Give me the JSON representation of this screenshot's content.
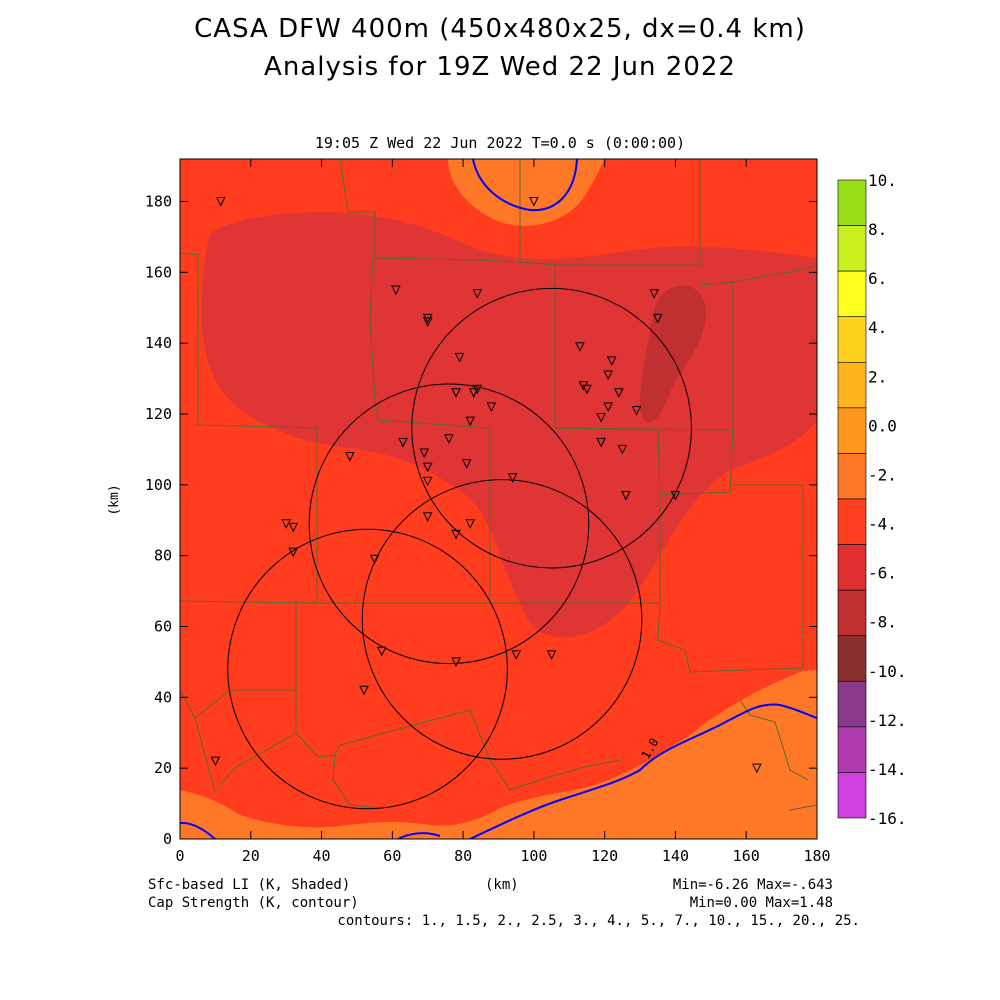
{
  "title_line1": "CASA DFW 400m (450x480x25, dx=0.4 km)",
  "title_line2": "Analysis for 19Z Wed 22 Jun 2022",
  "subtitle": "19:05 Z Wed 22 Jun 2022   T=0.0 s (0:00:00)",
  "x_axis": {
    "label": "(km)",
    "ticks": [
      "0",
      "20",
      "40",
      "60",
      "80",
      "100",
      "120",
      "140",
      "160",
      "180"
    ],
    "range": [
      0,
      180
    ]
  },
  "y_axis": {
    "label": "(km)",
    "ticks": [
      "0",
      "20",
      "40",
      "60",
      "80",
      "100",
      "120",
      "140",
      "160",
      "180"
    ],
    "range": [
      0,
      192
    ]
  },
  "colorbar": {
    "labels": [
      "10.",
      "8.",
      "6.",
      "4.",
      "2.",
      "0.0",
      "-2.",
      "-4.",
      "-6.",
      "-8.",
      "-10.",
      "-12.",
      "-14.",
      "-16."
    ],
    "colors": [
      "#99e01a",
      "#c8f01e",
      "#ffff1e",
      "#ffd21e",
      "#ffb41e",
      "#ff961e",
      "#ff7828",
      "#ff4020",
      "#e03030",
      "#c03030",
      "#8c2f2f",
      "#8a3a8a",
      "#b03ab0",
      "#d040e0"
    ]
  },
  "field_colors": {
    "minus2_to_0": "#ff7828",
    "minus4_to_minus2": "#ff3c1e",
    "minus6_to_minus4": "#e03535",
    "minus8_to_minus6": "#c03030"
  },
  "contour_label": "1.0",
  "contour_color": "#0000ff",
  "footer": {
    "left1": "Sfc-based LI (K, Shaded)",
    "left2": "Cap Strength (K, contour)",
    "center": "(km)",
    "right1": "Min=-6.26 Max=-.643",
    "right2": "Min=0.00 Max=1.48",
    "right3": "contours: 1., 1.5, 2., 2.5, 3., 4., 5., 7., 10., 15., 20., 25."
  },
  "stations": [
    [
      11.5,
      180
    ],
    [
      100,
      180
    ],
    [
      61,
      155
    ],
    [
      84,
      154
    ],
    [
      134,
      154
    ],
    [
      70,
      147
    ],
    [
      70,
      146
    ],
    [
      135,
      147
    ],
    [
      79,
      136
    ],
    [
      113,
      139
    ],
    [
      122,
      135
    ],
    [
      121,
      131
    ],
    [
      114,
      128
    ],
    [
      115,
      127
    ],
    [
      78,
      126
    ],
    [
      83,
      126
    ],
    [
      84,
      127
    ],
    [
      88,
      122
    ],
    [
      124,
      126
    ],
    [
      129,
      121
    ],
    [
      119,
      119
    ],
    [
      121,
      122
    ],
    [
      82,
      118
    ],
    [
      63,
      112
    ],
    [
      76,
      113
    ],
    [
      69,
      109
    ],
    [
      119,
      112
    ],
    [
      125,
      110
    ],
    [
      48,
      108
    ],
    [
      70,
      105
    ],
    [
      81,
      106
    ],
    [
      94,
      102
    ],
    [
      70,
      101
    ],
    [
      126,
      97
    ],
    [
      140,
      97
    ],
    [
      30,
      89
    ],
    [
      32,
      88
    ],
    [
      70,
      91
    ],
    [
      82,
      89
    ],
    [
      78,
      86
    ],
    [
      32,
      81
    ],
    [
      55,
      79
    ],
    [
      57,
      53
    ],
    [
      78,
      50
    ],
    [
      95,
      52
    ],
    [
      105,
      52
    ],
    [
      52,
      42
    ],
    [
      10,
      22
    ],
    [
      163,
      20
    ]
  ],
  "radar_rings": [
    {
      "cx": 105,
      "cy": 116,
      "r": 39.5
    },
    {
      "cx": 76,
      "cy": 89,
      "r": 39.5
    },
    {
      "cx": 91,
      "cy": 62,
      "r": 39.5
    },
    {
      "cx": 53,
      "cy": 48,
      "r": 39.5
    }
  ]
}
